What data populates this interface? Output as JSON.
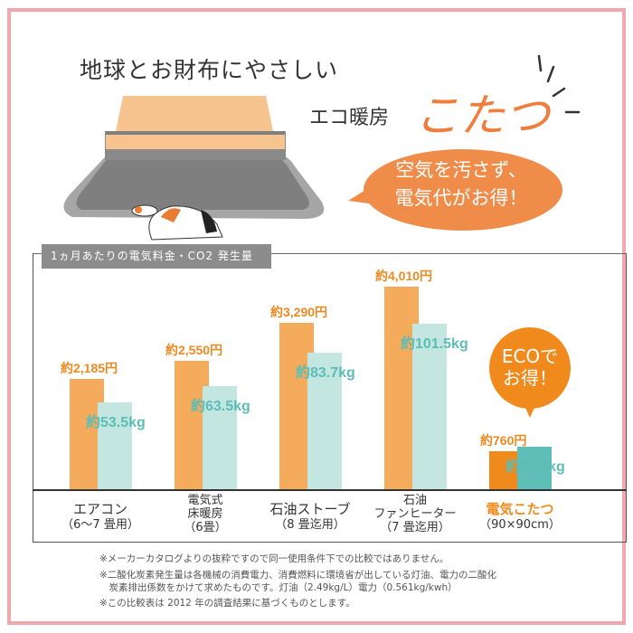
{
  "header": {
    "line1": "地球とお財布にやさしい",
    "line2": "エコ暖房",
    "highlight": "こたつ",
    "bubble_line1": "空気を汚さず、",
    "bubble_line2": "電気代がお得！"
  },
  "colors": {
    "frame": "#f2a6ad",
    "accent": "#ef7d3c",
    "cost_bar": "#f4ac5c",
    "co2_bar": "#c3e6e1",
    "cost_bar_highlight": "#f08a1c",
    "co2_bar_highlight": "#5fbfb8",
    "cost_label": "#ec8a22",
    "co2_label": "#5bbdb6"
  },
  "chart_data": {
    "type": "bar",
    "title": "1ヵ月あたりの電気料金・CO2 発生量",
    "categories": [
      {
        "lines": [
          "エアコン",
          "（6～7 畳用）"
        ]
      },
      {
        "lines": [
          "電気式",
          "床暖房",
          "（6畳）"
        ]
      },
      {
        "lines": [
          "石油ストーブ",
          "（8 畳迄用）"
        ]
      },
      {
        "lines": [
          "石油",
          "ファンヒーター",
          "（7 畳迄用）"
        ]
      },
      {
        "lines": [
          "電気こたつ",
          "（90×90cm）"
        ],
        "highlight": true
      }
    ],
    "series": [
      {
        "name": "電気料金",
        "unit": "円",
        "values": [
          2185,
          2550,
          3290,
          4010,
          760
        ],
        "labels": [
          "約2,185円",
          "約2,550円",
          "約3,290円",
          "約4,010円",
          "約760円"
        ]
      },
      {
        "name": "CO2 発生量",
        "unit": "kg",
        "values": [
          53.5,
          63.5,
          83.7,
          101.5,
          25.9
        ],
        "labels": [
          "約53.5kg",
          "約63.5kg",
          "約83.7kg",
          "約101.5kg",
          "約25.9kg"
        ]
      }
    ],
    "badge": [
      "ECOで",
      "お得！"
    ]
  },
  "notes": [
    "※メーカーカタログよりの抜粋ですので同一使用条件下での比較ではありません。",
    "※二酸化炭素発生量は各機械の消費電力、消費燃料に環境省が出している灯油、電力の二酸化",
    "　炭素排出係数をかけて求めたものです。灯油（2.49kg/L）電力（0.561kg/kwh）",
    "※この比較表は 2012 年の調査結果に基づくものとします。"
  ]
}
